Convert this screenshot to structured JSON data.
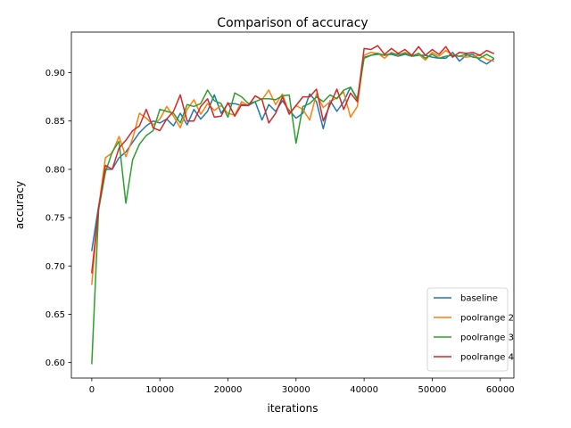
{
  "chart_data": {
    "type": "line",
    "title": "Comparison of accuracy",
    "xlabel": "iterations",
    "ylabel": "accuracy",
    "xlim": [
      -3000,
      62000
    ],
    "ylim": [
      0.584,
      0.942
    ],
    "xticks": [
      0,
      10000,
      20000,
      30000,
      40000,
      50000,
      60000
    ],
    "xtick_labels": [
      "0",
      "10000",
      "20000",
      "30000",
      "40000",
      "50000",
      "60000"
    ],
    "yticks": [
      0.6,
      0.65,
      0.7,
      0.75,
      0.8,
      0.85,
      0.9
    ],
    "ytick_labels": [
      "0.60",
      "0.65",
      "0.70",
      "0.75",
      "0.80",
      "0.85",
      "0.90"
    ],
    "grid": false,
    "legend_position": "lower-right",
    "x": [
      0,
      1000,
      2000,
      3000,
      4000,
      5000,
      6000,
      7000,
      8000,
      9000,
      10000,
      11000,
      12000,
      13000,
      14000,
      15000,
      16000,
      17000,
      18000,
      19000,
      20000,
      21000,
      22000,
      23000,
      24000,
      25000,
      26000,
      27000,
      28000,
      29000,
      30000,
      31000,
      32000,
      33000,
      34000,
      35000,
      36000,
      37000,
      38000,
      39000,
      40000,
      41000,
      42000,
      43000,
      44000,
      45000,
      46000,
      47000,
      48000,
      49000,
      50000,
      51000,
      52000,
      53000,
      54000,
      55000,
      56000,
      57000,
      58000,
      59000
    ],
    "series": [
      {
        "name": "baseline",
        "color": "#1f77b4",
        "values": [
          0.716,
          0.762,
          0.8,
          0.8,
          0.812,
          0.818,
          0.828,
          0.838,
          0.845,
          0.85,
          0.848,
          0.852,
          0.845,
          0.858,
          0.846,
          0.862,
          0.852,
          0.86,
          0.877,
          0.858,
          0.868,
          0.868,
          0.866,
          0.866,
          0.87,
          0.851,
          0.867,
          0.86,
          0.871,
          0.861,
          0.853,
          0.858,
          0.878,
          0.87,
          0.842,
          0.871,
          0.86,
          0.87,
          0.885,
          0.873,
          0.916,
          0.918,
          0.919,
          0.918,
          0.919,
          0.917,
          0.919,
          0.917,
          0.918,
          0.918,
          0.916,
          0.915,
          0.915,
          0.921,
          0.912,
          0.918,
          0.919,
          0.913,
          0.909,
          0.914
        ]
      },
      {
        "name": "poolrange 2",
        "color": "#ff7f0e",
        "values": [
          0.681,
          0.76,
          0.812,
          0.817,
          0.834,
          0.813,
          0.832,
          0.858,
          0.853,
          0.846,
          0.852,
          0.865,
          0.855,
          0.843,
          0.862,
          0.872,
          0.857,
          0.868,
          0.861,
          0.866,
          0.858,
          0.856,
          0.87,
          0.866,
          0.876,
          0.872,
          0.882,
          0.867,
          0.878,
          0.858,
          0.866,
          0.862,
          0.851,
          0.878,
          0.864,
          0.87,
          0.874,
          0.88,
          0.854,
          0.865,
          0.918,
          0.921,
          0.92,
          0.915,
          0.921,
          0.918,
          0.921,
          0.918,
          0.919,
          0.913,
          0.921,
          0.917,
          0.923,
          0.918,
          0.917,
          0.916,
          0.917,
          0.918,
          0.914,
          0.912
        ]
      },
      {
        "name": "poolrange 3",
        "color": "#2ca02c",
        "values": [
          0.599,
          0.758,
          0.797,
          0.818,
          0.829,
          0.765,
          0.81,
          0.826,
          0.835,
          0.84,
          0.862,
          0.86,
          0.858,
          0.848,
          0.867,
          0.865,
          0.868,
          0.882,
          0.871,
          0.868,
          0.854,
          0.879,
          0.875,
          0.868,
          0.87,
          0.873,
          0.873,
          0.872,
          0.876,
          0.877,
          0.827,
          0.865,
          0.868,
          0.875,
          0.87,
          0.877,
          0.873,
          0.882,
          0.885,
          0.872,
          0.915,
          0.918,
          0.92,
          0.918,
          0.92,
          0.919,
          0.92,
          0.917,
          0.92,
          0.915,
          0.919,
          0.915,
          0.917,
          0.918,
          0.917,
          0.919,
          0.916,
          0.915,
          0.919,
          0.915
        ]
      },
      {
        "name": "poolrange 4",
        "color": "#d62728",
        "values": [
          0.693,
          0.76,
          0.804,
          0.8,
          0.822,
          0.83,
          0.84,
          0.845,
          0.862,
          0.843,
          0.84,
          0.852,
          0.86,
          0.877,
          0.85,
          0.85,
          0.865,
          0.873,
          0.854,
          0.855,
          0.869,
          0.855,
          0.867,
          0.866,
          0.876,
          0.872,
          0.848,
          0.858,
          0.875,
          0.857,
          0.866,
          0.875,
          0.875,
          0.883,
          0.85,
          0.867,
          0.883,
          0.862,
          0.879,
          0.87,
          0.925,
          0.924,
          0.928,
          0.919,
          0.925,
          0.92,
          0.924,
          0.918,
          0.927,
          0.918,
          0.924,
          0.919,
          0.927,
          0.916,
          0.921,
          0.92,
          0.921,
          0.918,
          0.923,
          0.92
        ]
      }
    ]
  }
}
